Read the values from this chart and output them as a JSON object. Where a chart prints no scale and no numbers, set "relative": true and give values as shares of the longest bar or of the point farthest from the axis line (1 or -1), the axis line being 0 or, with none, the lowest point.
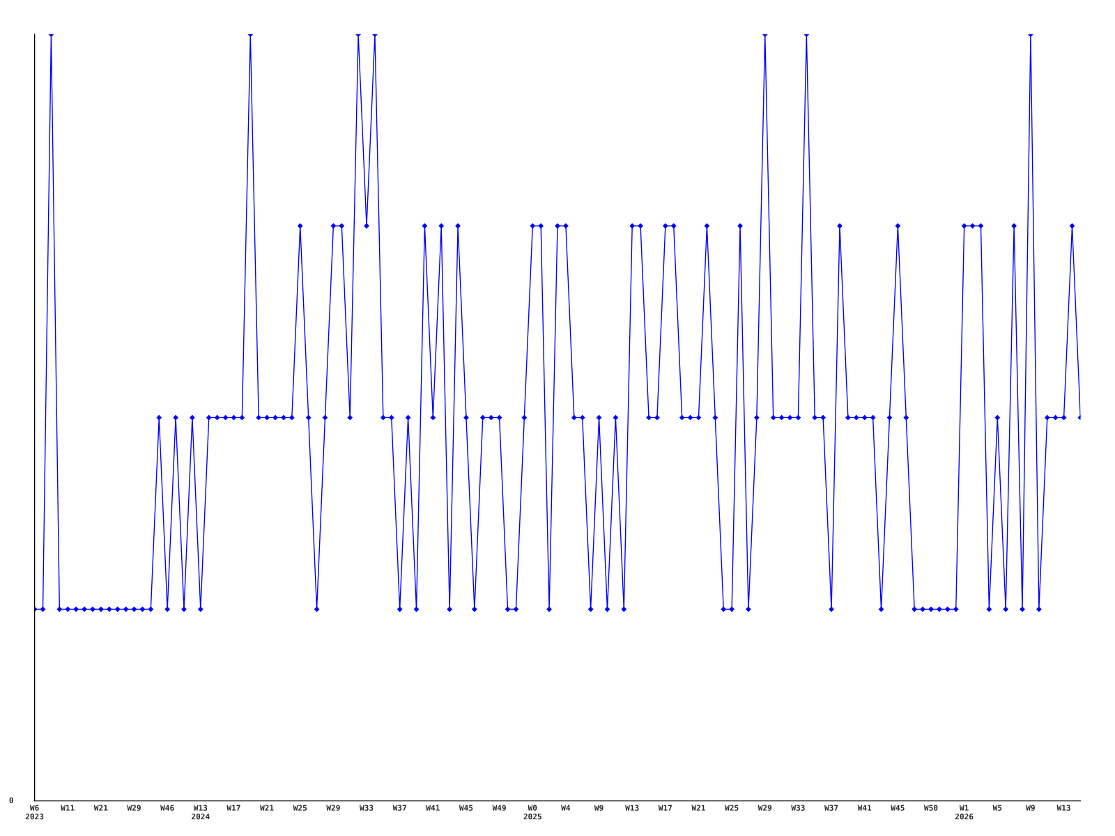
{
  "chart_data": {
    "type": "line",
    "relative": true,
    "marker": "diamond",
    "line_style": "solid",
    "grid": false,
    "legend": false,
    "annotations": [
      "0"
    ],
    "categories": [
      "W6\n2023",
      null,
      null,
      null,
      "W11",
      null,
      null,
      null,
      "W21",
      null,
      null,
      null,
      "W29",
      null,
      null,
      null,
      "W46",
      null,
      null,
      null,
      "W13\n2024",
      null,
      null,
      null,
      "W17",
      null,
      null,
      null,
      "W21",
      null,
      null,
      null,
      "W25",
      null,
      null,
      null,
      "W29",
      null,
      null,
      null,
      "W33",
      null,
      null,
      null,
      "W37",
      null,
      null,
      null,
      "W41",
      null,
      null,
      null,
      "W45",
      null,
      null,
      null,
      "W49",
      null,
      null,
      null,
      "W0\n2025",
      null,
      null,
      null,
      "W4",
      null,
      null,
      null,
      "W9",
      null,
      null,
      null,
      "W13",
      null,
      null,
      null,
      "W17",
      null,
      null,
      null,
      "W21",
      null,
      null,
      null,
      "W25",
      null,
      null,
      null,
      "W29",
      null,
      null,
      null,
      "W33",
      null,
      null,
      null,
      "W37",
      null,
      null,
      null,
      "W41",
      null,
      null,
      null,
      "W45",
      null,
      null,
      null,
      "W50",
      null,
      null,
      null,
      "W1\n2026",
      null,
      null,
      null,
      "W5",
      null,
      null,
      null,
      "W9",
      null,
      null,
      null,
      "W13",
      null,
      null
    ],
    "series": [
      {
        "color": "#0000ff",
        "values": [
          0.25,
          0.25,
          1,
          0.25,
          0.25,
          0.25,
          0.25,
          0.25,
          0.25,
          0.25,
          0.25,
          0.25,
          0.25,
          0.25,
          0.25,
          0.5,
          0.25,
          0.5,
          0.25,
          0.5,
          0.25,
          0.5,
          0.5,
          0.5,
          0.5,
          0.5,
          1,
          0.5,
          0.5,
          0.5,
          0.5,
          0.5,
          0.75,
          0.5,
          0.25,
          0.5,
          0.75,
          0.75,
          0.5,
          1,
          0.75,
          1,
          0.5,
          0.5,
          0.25,
          0.5,
          0.25,
          0.75,
          0.5,
          0.75,
          0.25,
          0.75,
          0.5,
          0.25,
          0.5,
          0.5,
          0.5,
          0.25,
          0.25,
          0.5,
          0.75,
          0.75,
          0.25,
          0.75,
          0.75,
          0.5,
          0.5,
          0.25,
          0.5,
          0.25,
          0.5,
          0.25,
          0.75,
          0.75,
          0.5,
          0.5,
          0.75,
          0.75,
          0.5,
          0.5,
          0.5,
          0.75,
          0.5,
          0.25,
          0.25,
          0.75,
          0.25,
          0.5,
          1,
          0.5,
          0.5,
          0.5,
          0.5,
          1,
          0.5,
          0.5,
          0.25,
          0.75,
          0.5,
          0.5,
          0.5,
          0.5,
          0.25,
          0.5,
          0.75,
          0.5,
          0.25,
          0.25,
          0.25,
          0.25,
          0.25,
          0.25,
          0.75,
          0.75,
          0.75,
          0.25,
          0.5,
          0.25,
          0.75,
          0.25,
          1,
          0.25,
          0.5,
          0.5,
          0.5,
          0.75,
          0.5
        ]
      }
    ]
  }
}
